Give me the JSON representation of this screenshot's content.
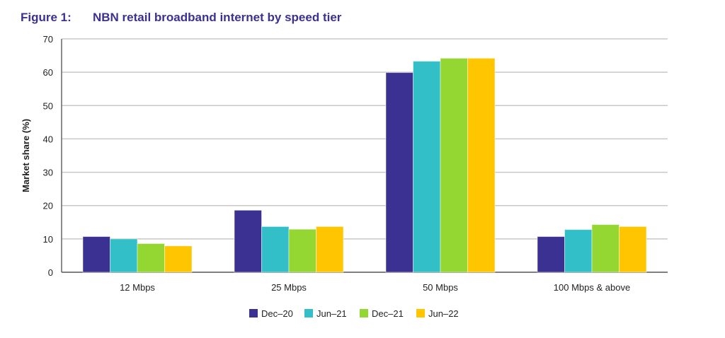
{
  "figure_label": "Figure 1:",
  "chart_data": {
    "type": "bar",
    "title": "NBN retail broadband internet by speed tier",
    "xlabel": "",
    "ylabel": "Market share (%)",
    "ylim": [
      0,
      70
    ],
    "yticks": [
      0,
      10,
      20,
      30,
      40,
      50,
      60,
      70
    ],
    "grid": true,
    "legend_position": "bottom",
    "categories": [
      "12 Mbps",
      "25 Mbps",
      "50 Mbps",
      "100 Mbps & above"
    ],
    "series": [
      {
        "name": "Dec–20",
        "color": "#3b3192",
        "values": [
          10.7,
          18.6,
          59.9,
          10.7
        ]
      },
      {
        "name": "Jun–21",
        "color": "#32bfc7",
        "values": [
          10.0,
          13.7,
          63.3,
          12.8
        ]
      },
      {
        "name": "Dec–21",
        "color": "#94d733",
        "values": [
          8.6,
          12.9,
          64.2,
          14.3
        ]
      },
      {
        "name": "Jun–22",
        "color": "#ffc600",
        "values": [
          7.9,
          13.7,
          64.2,
          13.7
        ]
      }
    ]
  }
}
